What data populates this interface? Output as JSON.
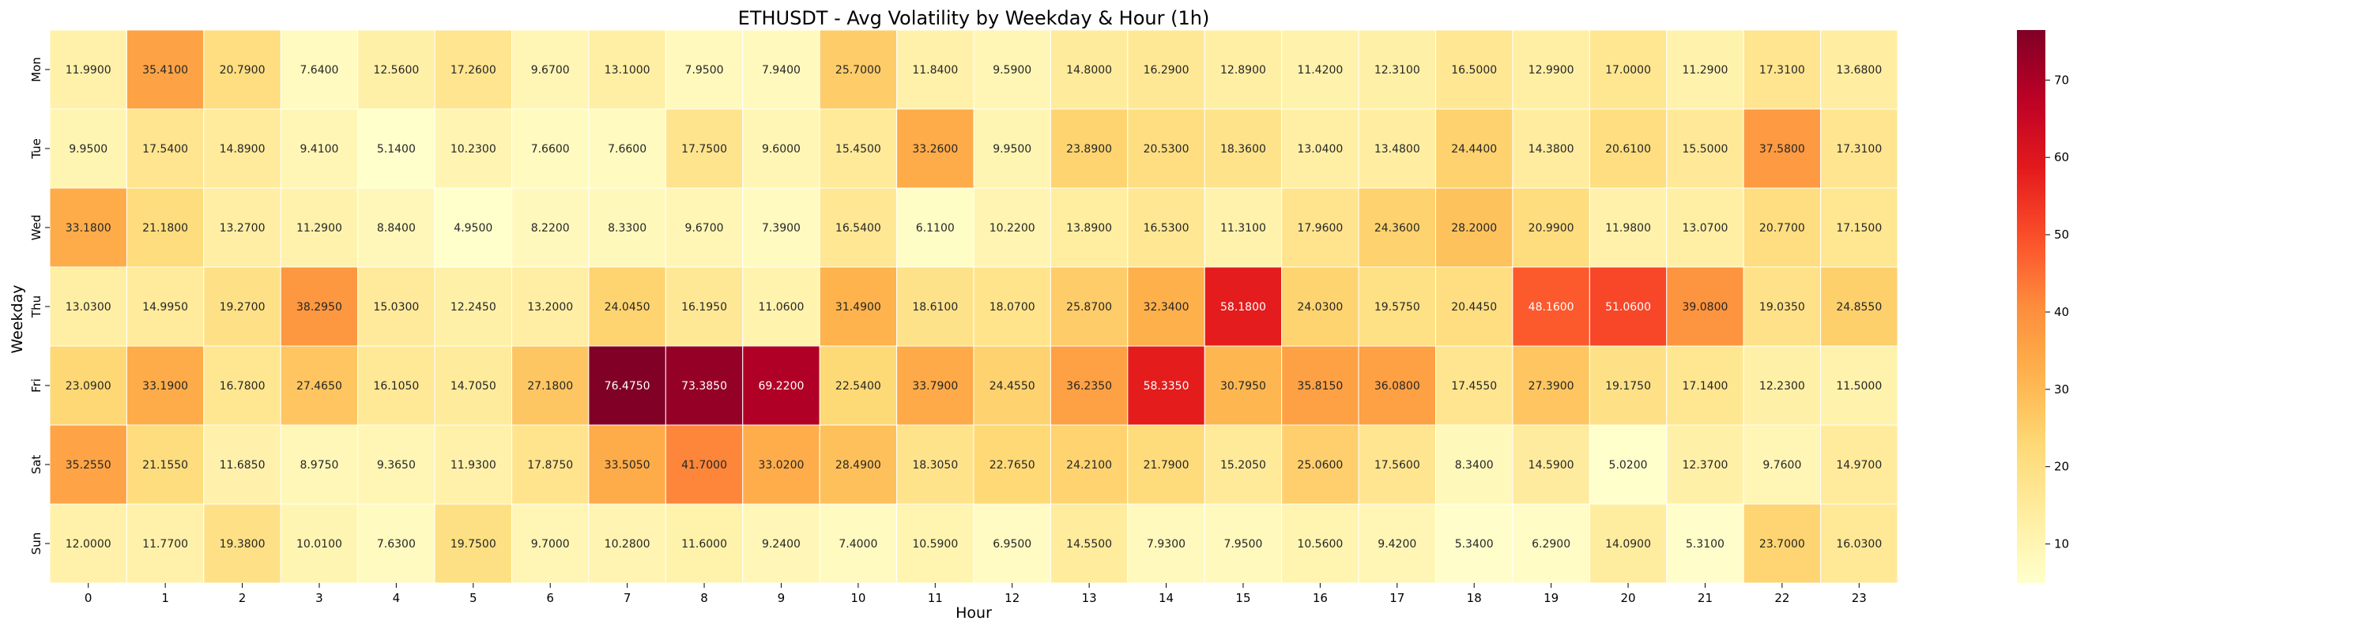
{
  "chart_data": {
    "type": "heatmap",
    "title": "ETHUSDT - Avg Volatility by Weekday & Hour (1h)",
    "xlabel": "Hour",
    "ylabel": "Weekday",
    "x": [
      "0",
      "1",
      "2",
      "3",
      "4",
      "5",
      "6",
      "7",
      "8",
      "9",
      "10",
      "11",
      "12",
      "13",
      "14",
      "15",
      "16",
      "17",
      "18",
      "19",
      "20",
      "21",
      "22",
      "23"
    ],
    "y": [
      "Mon",
      "Tue",
      "Wed",
      "Thu",
      "Fri",
      "Sat",
      "Sun"
    ],
    "values": [
      [
        11.99,
        35.41,
        20.79,
        7.64,
        12.56,
        17.26,
        9.67,
        13.1,
        7.95,
        7.94,
        25.7,
        11.84,
        9.59,
        14.8,
        16.29,
        12.89,
        11.42,
        12.31,
        16.5,
        12.99,
        17.0,
        11.29,
        17.31,
        13.68
      ],
      [
        9.95,
        17.54,
        14.89,
        9.41,
        5.14,
        10.23,
        7.66,
        7.66,
        17.75,
        9.6,
        15.45,
        33.26,
        9.95,
        23.89,
        20.53,
        18.36,
        13.04,
        13.48,
        24.44,
        14.38,
        20.61,
        15.5,
        37.58,
        17.31
      ],
      [
        33.18,
        21.18,
        13.27,
        11.29,
        8.84,
        4.95,
        8.22,
        8.33,
        9.67,
        7.39,
        16.54,
        6.11,
        10.22,
        13.89,
        16.53,
        11.31,
        17.96,
        24.36,
        28.2,
        20.99,
        11.98,
        13.07,
        20.77,
        17.15
      ],
      [
        13.03,
        14.995,
        19.27,
        38.295,
        15.03,
        12.245,
        13.2,
        24.045,
        16.195,
        11.06,
        31.49,
        18.61,
        18.07,
        25.87,
        32.34,
        58.18,
        24.03,
        19.575,
        20.445,
        48.16,
        51.06,
        39.08,
        19.035,
        24.855
      ],
      [
        23.09,
        33.19,
        16.78,
        27.465,
        16.105,
        14.705,
        27.18,
        76.475,
        73.385,
        69.22,
        22.54,
        33.79,
        24.455,
        36.235,
        58.335,
        30.795,
        35.815,
        36.08,
        17.455,
        27.39,
        19.175,
        17.14,
        12.23,
        11.5
      ],
      [
        35.255,
        21.155,
        11.685,
        8.975,
        9.365,
        11.93,
        17.875,
        33.505,
        41.7,
        33.02,
        28.49,
        18.305,
        22.765,
        24.21,
        21.79,
        15.205,
        25.06,
        17.56,
        8.34,
        14.59,
        5.02,
        12.37,
        9.76,
        14.97
      ],
      [
        12.0,
        11.77,
        19.38,
        10.01,
        7.63,
        19.75,
        9.7,
        10.28,
        11.6,
        9.24,
        7.4,
        10.59,
        6.95,
        14.55,
        7.93,
        7.95,
        10.56,
        9.42,
        5.34,
        6.29,
        14.09,
        5.31,
        23.7,
        16.03
      ]
    ],
    "value_format": "4 decimals",
    "colormap": "YlOrRd",
    "vmin": 4.95,
    "vmax": 76.475,
    "colorbar_ticks": [
      10,
      20,
      30,
      40,
      50,
      60,
      70
    ],
    "colors": {
      "low": "#ffffcc",
      "high": "#800026"
    }
  }
}
